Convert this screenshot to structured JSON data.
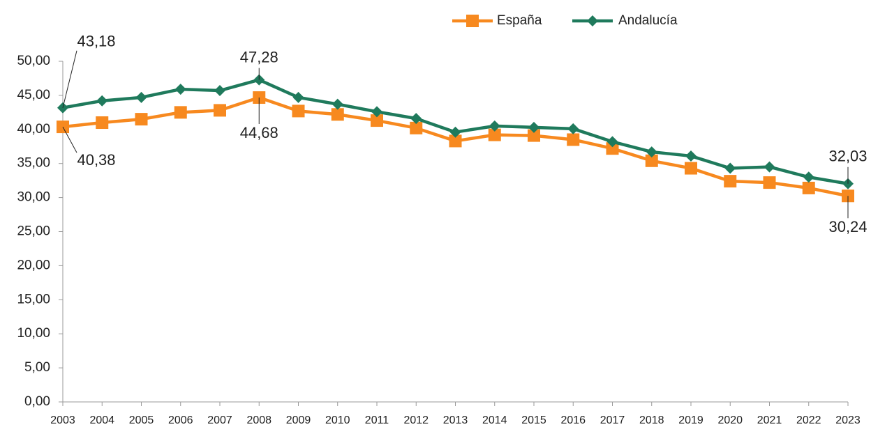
{
  "chart_data": {
    "type": "line",
    "categories": [
      "2003",
      "2004",
      "2005",
      "2006",
      "2007",
      "2008",
      "2009",
      "2010",
      "2011",
      "2012",
      "2013",
      "2014",
      "2015",
      "2016",
      "2017",
      "2018",
      "2019",
      "2020",
      "2021",
      "2022",
      "2023"
    ],
    "series": [
      {
        "name": "España",
        "color": "#f7891f",
        "marker": "square",
        "values": [
          40.38,
          41.0,
          41.5,
          42.5,
          42.8,
          44.68,
          42.7,
          42.2,
          41.3,
          40.2,
          38.3,
          39.2,
          39.1,
          38.5,
          37.2,
          35.4,
          34.3,
          32.4,
          32.2,
          31.4,
          30.24
        ],
        "value_labels": [
          "40,38",
          null,
          null,
          null,
          null,
          "44,68",
          null,
          null,
          null,
          null,
          null,
          null,
          null,
          null,
          null,
          null,
          null,
          null,
          null,
          null,
          "30,24"
        ]
      },
      {
        "name": "Andalucía",
        "color": "#1f7a5c",
        "marker": "diamond",
        "values": [
          43.18,
          44.2,
          44.7,
          45.9,
          45.7,
          47.28,
          44.7,
          43.7,
          42.6,
          41.6,
          39.6,
          40.5,
          40.3,
          40.1,
          38.2,
          36.7,
          36.1,
          34.3,
          34.5,
          33.0,
          32.03
        ],
        "value_labels": [
          "43,18",
          null,
          null,
          null,
          null,
          "47,28",
          null,
          null,
          null,
          null,
          null,
          null,
          null,
          null,
          null,
          null,
          null,
          null,
          null,
          null,
          "32,03"
        ]
      }
    ],
    "ylim": [
      0,
      50
    ],
    "yticks": [
      {
        "value": 0,
        "label": "0,00"
      },
      {
        "value": 5,
        "label": "5,00"
      },
      {
        "value": 10,
        "label": "10,00"
      },
      {
        "value": 15,
        "label": "15,00"
      },
      {
        "value": 20,
        "label": "20,00"
      },
      {
        "value": 25,
        "label": "25,00"
      },
      {
        "value": 30,
        "label": "30,00"
      },
      {
        "value": 35,
        "label": "35,00"
      },
      {
        "value": 40,
        "label": "40,00"
      },
      {
        "value": 45,
        "label": "45,00"
      },
      {
        "value": 50,
        "label": "50,00"
      }
    ],
    "grid": false,
    "legend": "top"
  }
}
